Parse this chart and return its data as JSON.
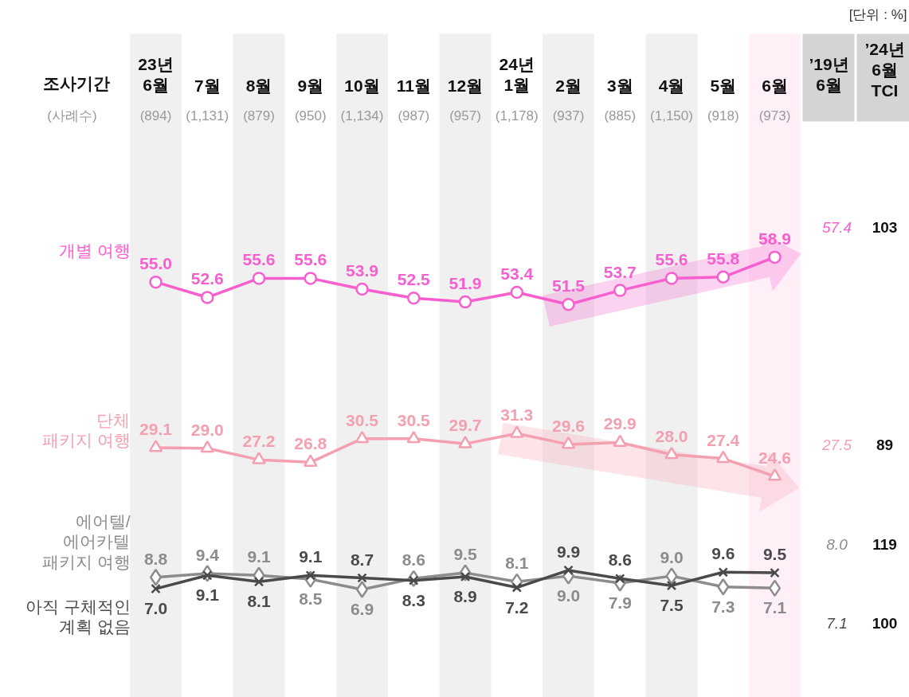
{
  "chart_data": {
    "type": "line",
    "categories": [
      "23년\n6월",
      "7월",
      "8월",
      "9월",
      "10월",
      "11월",
      "12월",
      "24년\n1월",
      "2월",
      "3월",
      "4월",
      "5월",
      "6월"
    ],
    "series": [
      {
        "name": "개별 여행",
        "color": "#f75fcf",
        "marker": "circle",
        "values": [
          55.0,
          52.6,
          55.6,
          55.6,
          53.9,
          52.5,
          51.9,
          53.4,
          51.5,
          53.7,
          55.6,
          55.8,
          58.9
        ],
        "value_labels": [
          "55.0",
          "52.6",
          "55.6",
          "55.6",
          "53.9",
          "52.5",
          "51.9",
          "53.4",
          "51.5",
          "53.7",
          "55.6",
          "55.8",
          "58.9"
        ]
      },
      {
        "name": "단체\n패키지 여행",
        "color": "#f4a0b0",
        "marker": "triangle",
        "values": [
          29.1,
          29.0,
          27.2,
          26.8,
          30.5,
          30.5,
          29.7,
          31.3,
          29.6,
          29.9,
          28.0,
          27.4,
          24.6
        ],
        "value_labels": [
          "29.1",
          "29.0",
          "27.2",
          "26.8",
          "30.5",
          "30.5",
          "29.7",
          "31.3",
          "29.6",
          "29.9",
          "28.0",
          "27.4",
          "24.6"
        ]
      },
      {
        "name": "에어텔/\n에어카텔\n패키지 여행",
        "color": "#8c8c8c",
        "marker": "diamond",
        "values": [
          8.8,
          9.4,
          9.1,
          8.5,
          6.9,
          8.6,
          9.5,
          8.1,
          9.0,
          7.9,
          9.0,
          7.3,
          7.1
        ],
        "value_labels": [
          "8.8",
          "9.4",
          "9.1",
          "8.5",
          "6.9",
          "8.6",
          "9.5",
          "8.1",
          "9.0",
          "7.9",
          "9.0",
          "7.3",
          "7.1"
        ]
      },
      {
        "name": "아직 구체적인\n계획 없음",
        "color": "#4a4a4a",
        "marker": "cross",
        "values": [
          7.0,
          9.1,
          8.1,
          9.1,
          8.7,
          8.3,
          8.9,
          7.2,
          9.9,
          8.6,
          7.5,
          9.6,
          9.5
        ],
        "value_labels": [
          "7.0",
          "9.1",
          "8.1",
          "9.1",
          "8.7",
          "8.3",
          "8.9",
          "7.2",
          "9.9",
          "8.6",
          "7.5",
          "9.6",
          "9.5"
        ]
      }
    ],
    "bands": [
      {
        "axis": "x",
        "from": "6월",
        "to": "6월",
        "color": "#fff0f8"
      }
    ],
    "line_style": "solid",
    "annotations": [
      "[단위 : %]",
      "조사기간",
      "(사례수)",
      "(894)",
      "(1,131)",
      "(879)",
      "(950)",
      "(1,134)",
      "(987)",
      "(957)",
      "(1,178)",
      "(937)",
      "(885)",
      "(1,150)",
      "(918)",
      "(973)",
      "’19년\n6월",
      "’24년\n6월\nTCI",
      "57.4",
      "27.5",
      "8.0",
      "7.1",
      "103",
      "89",
      "119",
      "100"
    ]
  }
}
